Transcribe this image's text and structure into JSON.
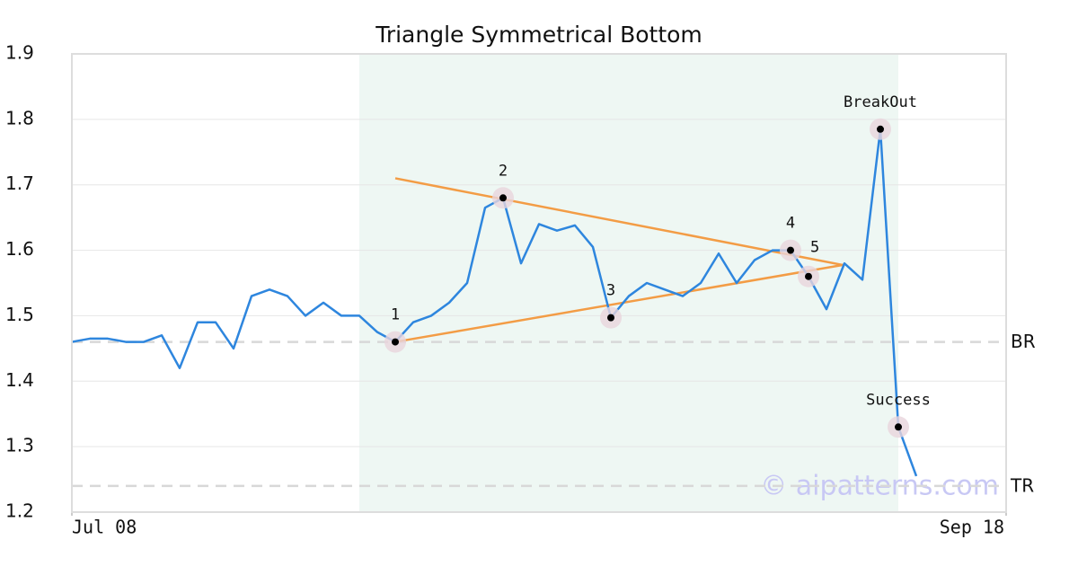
{
  "chart_data": {
    "type": "line",
    "title": "Triangle Symmetrical Bottom",
    "x": [
      0,
      1,
      2,
      3,
      4,
      5,
      6,
      7,
      8,
      9,
      10,
      11,
      12,
      13,
      14,
      15,
      16,
      17,
      18,
      19,
      20,
      21,
      22,
      23,
      24,
      25,
      26,
      27,
      28,
      29,
      30,
      31,
      32,
      33,
      34,
      35,
      36,
      37,
      38,
      39,
      40,
      41,
      42,
      43,
      44,
      45,
      46,
      47
    ],
    "series": [
      {
        "name": "Price",
        "color": "#2e86de",
        "values": [
          1.46,
          1.465,
          1.465,
          1.46,
          1.46,
          1.47,
          1.42,
          1.49,
          1.49,
          1.45,
          1.53,
          1.54,
          1.53,
          1.5,
          1.52,
          1.5,
          1.5,
          1.475,
          1.46,
          1.49,
          1.5,
          1.52,
          1.55,
          1.665,
          1.68,
          1.58,
          1.64,
          1.63,
          1.638,
          1.605,
          1.497,
          1.53,
          1.55,
          1.54,
          1.53,
          1.55,
          1.595,
          1.55,
          1.585,
          1.6,
          1.6,
          1.56,
          1.51,
          1.58,
          1.555,
          1.785,
          1.33,
          1.255
        ]
      }
    ],
    "xlim": [
      0,
      52
    ],
    "xticks": [
      {
        "value": 0,
        "label": "Jul 08"
      },
      {
        "value": 52,
        "label": "Sep 18"
      }
    ],
    "ylim": [
      1.2,
      1.9
    ],
    "yticks": [
      1.2,
      1.3,
      1.4,
      1.5,
      1.6,
      1.7,
      1.8,
      1.9
    ],
    "grid": true,
    "shade": [
      16,
      46
    ],
    "shade_color": "#eef7f3",
    "trend_color": "#f39c45",
    "trendlines": [
      {
        "x": [
          18,
          43
        ],
        "y": [
          1.71,
          1.577
        ]
      },
      {
        "x": [
          18,
          43
        ],
        "y": [
          1.46,
          1.578
        ]
      }
    ],
    "hlines": [
      {
        "label": "BR",
        "value": 1.46
      },
      {
        "label": "TR",
        "value": 1.24
      }
    ],
    "points": [
      {
        "label": "1",
        "x": 18,
        "y": 1.46
      },
      {
        "label": "2",
        "x": 24,
        "y": 1.68
      },
      {
        "label": "3",
        "x": 30,
        "y": 1.497
      },
      {
        "label": "4",
        "x": 40,
        "y": 1.6
      },
      {
        "label": "5",
        "x": 41,
        "y": 1.56
      },
      {
        "label": "BreakOut",
        "x": 45,
        "y": 1.785
      },
      {
        "label": "Success",
        "x": 46,
        "y": 1.33
      }
    ],
    "watermark": "© aipatterns.com"
  }
}
